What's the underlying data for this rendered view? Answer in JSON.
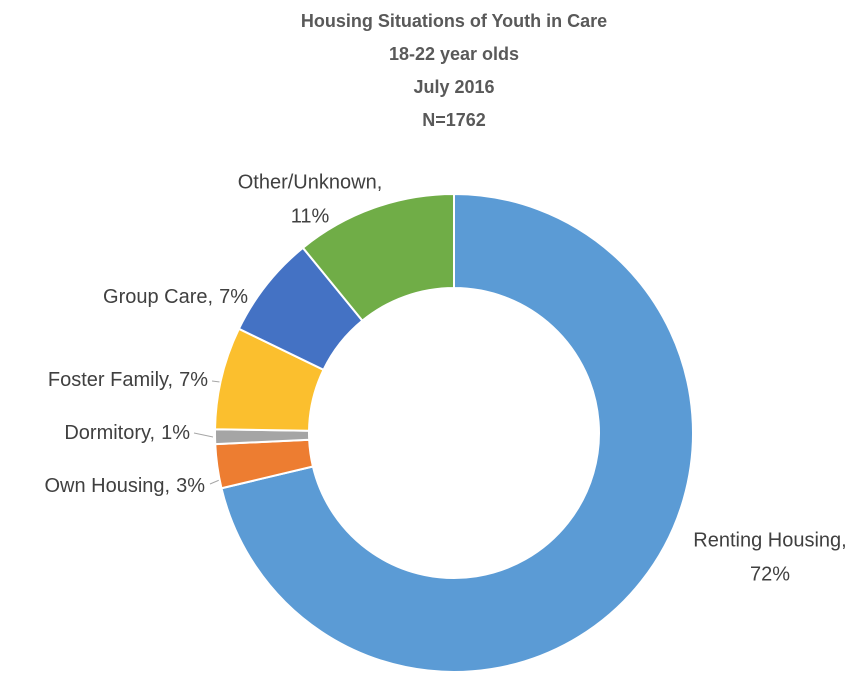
{
  "chart_data": {
    "type": "donut",
    "title": "Housing Situations of Youth in Care",
    "subtitle": [
      "18-22 year olds",
      "July 2016",
      "N=1762"
    ],
    "categories": [
      "Renting Housing,",
      "Own Housing,",
      "Dormitory,",
      "Foster Family,",
      "Group Care,",
      "Other/Unknown,"
    ],
    "values": [
      72,
      3,
      1,
      7,
      7,
      11
    ],
    "value_labels": [
      "72%",
      "3%",
      "1%",
      "7%",
      "7%",
      "11%"
    ],
    "colors": [
      "#5b9bd5",
      "#ed7d31",
      "#a5a5a5",
      "#fbbf2e",
      "#4472c4",
      "#70ad47"
    ]
  }
}
